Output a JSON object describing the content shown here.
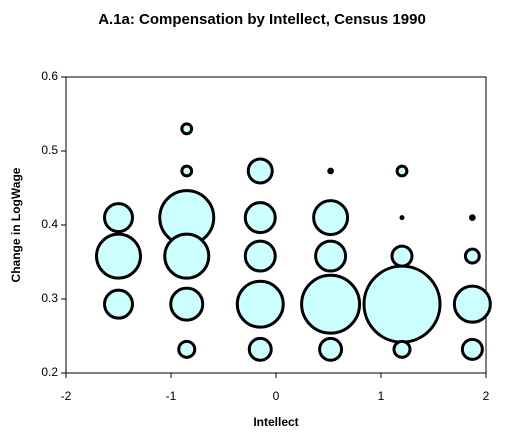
{
  "chart_data": {
    "type": "bubble",
    "title": "A.1a: Compensation by Intellect, Census 1990",
    "x_label": "Intellect",
    "y_label": "Change in LogWage",
    "series": [
      {
        "color": "#ccffff",
        "x": [
          -1.5,
          -1.5,
          -1.5,
          -0.85,
          -0.85,
          -0.85,
          -0.85,
          -0.85,
          -0.85,
          -0.15,
          -0.15,
          -0.15,
          -0.15,
          -0.15,
          0.52,
          0.52,
          0.52,
          0.52,
          0.52,
          1.2,
          1.2,
          1.2,
          1.2,
          1.2,
          1.87,
          1.87,
          1.87,
          1.87
        ],
        "values": [
          0.41,
          0.358,
          0.293,
          0.53,
          0.473,
          0.41,
          0.358,
          0.293,
          0.232,
          0.473,
          0.41,
          0.358,
          0.293,
          0.232,
          0.473,
          0.41,
          0.358,
          0.293,
          0.232,
          0.473,
          0.41,
          0.358,
          0.293,
          0.232,
          0.41,
          0.358,
          0.293,
          0.232
        ],
        "size": [
          49,
          121,
          49,
          6,
          6,
          182,
          121,
          64,
          16,
          36,
          56,
          56,
          132,
          30,
          2,
          72,
          56,
          210,
          30,
          6,
          1,
          25,
          361,
          16,
          2,
          12,
          81,
          25
        ]
      }
    ],
    "xlim": [
      -2,
      2
    ],
    "xticks": [
      -2,
      -1,
      0,
      1,
      2
    ],
    "ylim": [
      0.2,
      0.6
    ],
    "yticks": [
      0.2,
      0.3,
      0.4,
      0.5,
      0.6
    ],
    "grid": false
  }
}
